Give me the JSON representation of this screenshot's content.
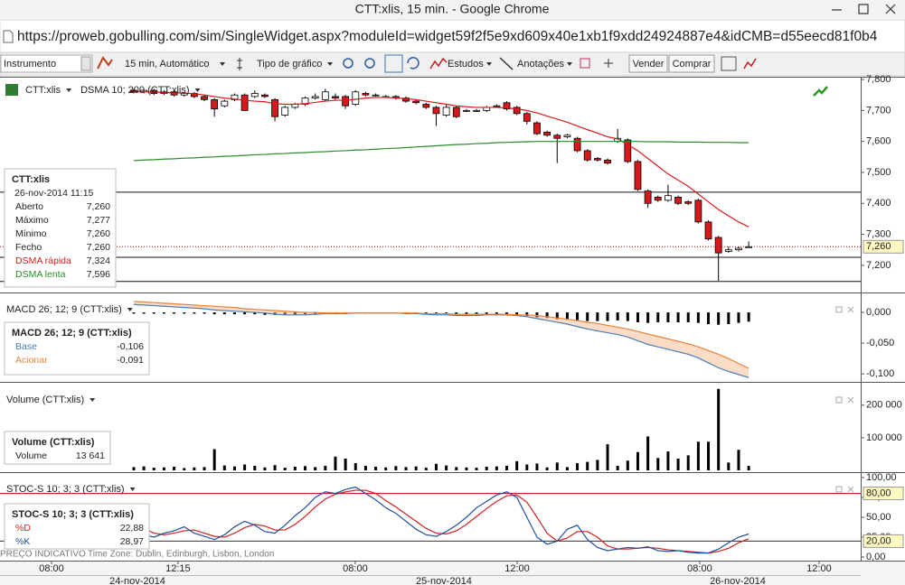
{
  "window": {
    "title": "CTT:xlis, 15 min. - Google Chrome"
  },
  "address_bar": {
    "url": "https://proweb.gobulling.com/sim/SingleWidget.aspx?moduleId=widget59f2f5e9xd609x40e1xb1f9xdd24924887e4&idCMB=d55eecd81f0b4"
  },
  "toolbar": {
    "instrument": "Instrumento",
    "interval": "15 min, Automático",
    "chart_type": "Tipo de gráfico",
    "studies": "Estudos",
    "annotations": "Anotações",
    "sell": "Vender",
    "buy": "Comprar"
  },
  "footer": {
    "note": "PREÇO INDICATIVO",
    "timezone": "Time Zone: Dublin, Edinburgh, Lisbon, London"
  },
  "chart_data": [
    {
      "type": "candlestick",
      "title": "CTT:xlis",
      "subtitle": "DSMA 10; 200 (CTT:xlis)",
      "x": [
        0,
        1,
        2,
        3,
        4,
        5,
        6,
        7,
        8,
        9,
        10,
        11,
        12,
        13,
        14,
        15,
        16,
        17,
        18,
        19,
        20,
        21,
        22,
        23,
        24,
        25,
        26,
        27,
        28,
        29,
        30,
        31,
        32,
        33,
        34,
        35,
        36,
        37,
        38,
        39,
        40,
        41,
        42,
        43,
        44,
        45,
        46,
        47,
        48,
        49,
        50,
        51,
        52,
        53,
        54,
        55,
        56,
        57,
        58,
        59,
        60,
        61
      ],
      "open": [
        7.765,
        7.76,
        7.765,
        7.755,
        7.76,
        7.75,
        7.755,
        7.745,
        7.735,
        7.715,
        7.735,
        7.75,
        7.745,
        7.75,
        7.735,
        7.685,
        7.71,
        7.72,
        7.74,
        7.735,
        7.745,
        7.745,
        7.72,
        7.755,
        7.75,
        7.745,
        7.745,
        7.74,
        7.73,
        7.72,
        7.71,
        7.685,
        7.71,
        7.7,
        7.7,
        7.7,
        7.715,
        7.725,
        7.71,
        7.69,
        7.66,
        7.63,
        7.62,
        7.615,
        7.61,
        7.57,
        7.545,
        7.54,
        7.6,
        7.605,
        7.535,
        7.44,
        7.42,
        7.41,
        7.42,
        7.405,
        7.41,
        7.34,
        7.29,
        7.245,
        7.25,
        7.26
      ],
      "high": [
        7.77,
        7.77,
        7.77,
        7.765,
        7.765,
        7.76,
        7.76,
        7.75,
        7.74,
        7.735,
        7.755,
        7.755,
        7.765,
        7.755,
        7.74,
        7.715,
        7.725,
        7.745,
        7.755,
        7.77,
        7.755,
        7.75,
        7.765,
        7.76,
        7.755,
        7.75,
        7.75,
        7.745,
        7.735,
        7.725,
        7.715,
        7.72,
        7.715,
        7.705,
        7.705,
        7.715,
        7.72,
        7.73,
        7.715,
        7.695,
        7.665,
        7.635,
        7.625,
        7.625,
        7.615,
        7.575,
        7.55,
        7.545,
        7.64,
        7.61,
        7.54,
        7.445,
        7.425,
        7.46,
        7.425,
        7.41,
        7.415,
        7.345,
        7.295,
        7.26,
        7.26,
        7.277
      ],
      "low": [
        7.755,
        7.755,
        7.75,
        7.75,
        7.745,
        7.745,
        7.74,
        7.73,
        7.68,
        7.71,
        7.73,
        7.7,
        7.74,
        7.74,
        7.665,
        7.68,
        7.705,
        7.715,
        7.735,
        7.73,
        7.735,
        7.705,
        7.715,
        7.745,
        7.745,
        7.74,
        7.735,
        7.725,
        7.72,
        7.705,
        7.65,
        7.68,
        7.675,
        7.695,
        7.695,
        7.695,
        7.71,
        7.7,
        7.685,
        7.655,
        7.62,
        7.615,
        7.53,
        7.61,
        7.565,
        7.535,
        7.535,
        7.525,
        7.595,
        7.53,
        7.44,
        7.385,
        7.405,
        7.405,
        7.395,
        7.395,
        7.335,
        7.28,
        7.15,
        7.24,
        7.245,
        7.26
      ],
      "close": [
        7.76,
        7.765,
        7.755,
        7.76,
        7.75,
        7.755,
        7.745,
        7.735,
        7.705,
        7.73,
        7.75,
        7.7,
        7.755,
        7.745,
        7.68,
        7.71,
        7.72,
        7.74,
        7.745,
        7.76,
        7.74,
        7.715,
        7.76,
        7.75,
        7.75,
        7.745,
        7.74,
        7.73,
        7.725,
        7.71,
        7.69,
        7.71,
        7.68,
        7.7,
        7.7,
        7.71,
        7.715,
        7.705,
        7.69,
        7.665,
        7.625,
        7.62,
        7.61,
        7.62,
        7.57,
        7.54,
        7.54,
        7.53,
        7.61,
        7.535,
        7.445,
        7.4,
        7.41,
        7.425,
        7.4,
        7.4,
        7.34,
        7.285,
        7.24,
        7.25,
        7.255,
        7.26
      ],
      "up_color": "#ffffff",
      "down_color": "#d7191c",
      "info": {
        "date": "26-nov-2014 11:15",
        "rows": [
          [
            "Aberto",
            "7,260"
          ],
          [
            "Máximo",
            "7,277"
          ],
          [
            "Mínimo",
            "7,260"
          ],
          [
            "Fecho",
            "7,260"
          ]
        ]
      },
      "series": [
        {
          "name": "DSMA rápida",
          "color": "#d7191c",
          "current": "7,324",
          "values": [
            7.76,
            7.76,
            7.76,
            7.758,
            7.757,
            7.756,
            7.754,
            7.75,
            7.745,
            7.74,
            7.737,
            7.733,
            7.73,
            7.728,
            7.722,
            7.72,
            7.72,
            7.722,
            7.726,
            7.73,
            7.733,
            7.733,
            7.736,
            7.74,
            7.742,
            7.742,
            7.74,
            7.738,
            7.735,
            7.73,
            7.725,
            7.72,
            7.715,
            7.712,
            7.71,
            7.71,
            7.71,
            7.708,
            7.705,
            7.7,
            7.692,
            7.682,
            7.672,
            7.662,
            7.65,
            7.638,
            7.627,
            7.615,
            7.608,
            7.59,
            7.57,
            7.545,
            7.52,
            7.495,
            7.475,
            7.455,
            7.43,
            7.405,
            7.38,
            7.36,
            7.34,
            7.324
          ]
        },
        {
          "name": "DSMA lenta",
          "color": "#2a8a2a",
          "current": "7,596",
          "values": [
            7.538,
            7.54,
            7.541,
            7.543,
            7.544,
            7.546,
            7.547,
            7.549,
            7.55,
            7.552,
            7.553,
            7.555,
            7.557,
            7.558,
            7.56,
            7.561,
            7.563,
            7.564,
            7.566,
            7.567,
            7.569,
            7.57,
            7.572,
            7.573,
            7.575,
            7.577,
            7.578,
            7.58,
            7.582,
            7.584,
            7.586,
            7.588,
            7.59,
            7.591,
            7.593,
            7.594,
            7.596,
            7.597,
            7.598,
            7.599,
            7.6,
            7.6,
            7.6,
            7.6,
            7.6,
            7.6,
            7.6,
            7.6,
            7.6,
            7.6,
            7.6,
            7.599,
            7.599,
            7.599,
            7.598,
            7.598,
            7.598,
            7.597,
            7.597,
            7.597,
            7.596,
            7.596
          ]
        }
      ],
      "hlines": [
        7.436,
        7.226,
        7.148
      ],
      "last": {
        "value": 7.26,
        "label": "7,260"
      },
      "xlim": [
        -13.27,
        72.11
      ],
      "ylim": [
        7.118,
        7.806
      ],
      "yticks": [
        {
          "value": 7.2,
          "label": "7,200"
        },
        {
          "value": 7.3,
          "label": "7,300"
        },
        {
          "value": 7.4,
          "label": "7,400"
        },
        {
          "value": 7.5,
          "label": "7,500"
        },
        {
          "value": 7.6,
          "label": "7,600"
        },
        {
          "value": 7.7,
          "label": "7,700"
        },
        {
          "value": 7.8,
          "label": "7,800"
        }
      ]
    },
    {
      "type": "line",
      "title": "MACD 26; 12; 9 (CTT:xlis)",
      "series": [
        {
          "name": "Base",
          "color": "#4a7ebb",
          "current": "-0,106",
          "values": [
            0.013,
            0.012,
            0.011,
            0.01,
            0.009,
            0.008,
            0.007,
            0.006,
            0.004,
            0.003,
            0.002,
            0.001,
            0,
            -0.001,
            -0.003,
            -0.004,
            -0.004,
            -0.004,
            -0.003,
            -0.002,
            -0.002,
            -0.002,
            -0.001,
            -0.001,
            -0.001,
            -0.001,
            -0.001,
            -0.002,
            -0.002,
            -0.003,
            -0.004,
            -0.004,
            -0.005,
            -0.005,
            -0.005,
            -0.004,
            -0.004,
            -0.004,
            -0.005,
            -0.007,
            -0.01,
            -0.013,
            -0.016,
            -0.019,
            -0.023,
            -0.027,
            -0.03,
            -0.033,
            -0.036,
            -0.04,
            -0.046,
            -0.052,
            -0.056,
            -0.06,
            -0.064,
            -0.068,
            -0.074,
            -0.082,
            -0.09,
            -0.096,
            -0.101,
            -0.106
          ]
        },
        {
          "name": "Acionar",
          "color": "#e8823c",
          "current": "-0,091",
          "values": [
            0.018,
            0.017,
            0.016,
            0.015,
            0.014,
            0.013,
            0.012,
            0.011,
            0.01,
            0.009,
            0.008,
            0.006,
            0.005,
            0.004,
            0.003,
            0.002,
            0.001,
            0,
            0,
            -0.001,
            -0.001,
            -0.001,
            -0.001,
            -0.001,
            -0.001,
            -0.001,
            -0.001,
            -0.001,
            -0.001,
            -0.002,
            -0.002,
            -0.002,
            -0.003,
            -0.003,
            -0.003,
            -0.003,
            -0.003,
            -0.003,
            -0.004,
            -0.004,
            -0.005,
            -0.007,
            -0.009,
            -0.011,
            -0.013,
            -0.016,
            -0.018,
            -0.021,
            -0.024,
            -0.027,
            -0.031,
            -0.035,
            -0.039,
            -0.043,
            -0.047,
            -0.051,
            -0.056,
            -0.062,
            -0.068,
            -0.075,
            -0.083,
            -0.091
          ]
        }
      ],
      "histogram": {
        "color": "#000000",
        "values": [
          -0.002,
          -0.002,
          -0.002,
          -0.002,
          -0.002,
          -0.002,
          -0.002,
          -0.002,
          -0.003,
          -0.003,
          -0.003,
          -0.003,
          -0.003,
          -0.004,
          -0.004,
          -0.004,
          -0.004,
          -0.003,
          -0.003,
          -0.002,
          -0.002,
          -0.002,
          -0.002,
          -0.002,
          -0.002,
          -0.002,
          -0.002,
          -0.002,
          -0.002,
          -0.002,
          -0.003,
          -0.003,
          -0.003,
          -0.003,
          -0.003,
          -0.003,
          -0.003,
          -0.003,
          -0.004,
          -0.006,
          -0.008,
          -0.009,
          -0.011,
          -0.012,
          -0.014,
          -0.014,
          -0.014,
          -0.014,
          -0.013,
          -0.014,
          -0.016,
          -0.017,
          -0.016,
          -0.016,
          -0.016,
          -0.016,
          -0.017,
          -0.019,
          -0.02,
          -0.019,
          -0.017,
          -0.015
        ]
      },
      "xlim": [
        -13.27,
        72.11
      ],
      "ylim": [
        -0.11,
        0.028
      ],
      "yticks": [
        {
          "value": 0,
          "label": "0,000"
        },
        {
          "value": -0.05,
          "label": "-0,050"
        },
        {
          "value": -0.1,
          "label": "-0,100"
        }
      ]
    },
    {
      "type": "bar",
      "title": "Volume (CTT:xlis)",
      "series": [
        {
          "name": "Volume",
          "color": "#000000",
          "current": "13 641",
          "values": [
            10000,
            12000,
            8000,
            9000,
            11000,
            7000,
            9000,
            10000,
            65000,
            15000,
            12000,
            18000,
            14000,
            9000,
            16000,
            8000,
            11000,
            13000,
            10000,
            14000,
            42000,
            36000,
            22000,
            14000,
            11000,
            9000,
            13000,
            10000,
            12000,
            8000,
            20000,
            15000,
            10000,
            9000,
            8000,
            11000,
            12000,
            14000,
            28000,
            18000,
            21000,
            9000,
            24000,
            10000,
            22000,
            26000,
            32000,
            80000,
            14000,
            30000,
            56000,
            104000,
            38000,
            58000,
            36000,
            46000,
            88000,
            88000,
            250000,
            24000,
            63000,
            13641
          ]
        }
      ],
      "xlim": [
        -13.27,
        72.11
      ],
      "ylim": [
        0,
        266000
      ],
      "yticks": [
        {
          "value": 200000,
          "label": "200 000"
        },
        {
          "value": 100000,
          "label": "100 000"
        }
      ]
    },
    {
      "type": "line",
      "title": "STOC-S 10; 3; 3 (CTT:xlis)",
      "series": [
        {
          "name": "%D",
          "color": "#d02020",
          "current": "22,88",
          "values": [
            45,
            36,
            30,
            28,
            30,
            33,
            34,
            30,
            26,
            25,
            30,
            37,
            41,
            39,
            34,
            34,
            41,
            51,
            63,
            73,
            79,
            82,
            84,
            84,
            80,
            71,
            63,
            54,
            45,
            36,
            30,
            29,
            33,
            41,
            51,
            61,
            70,
            77,
            78,
            69,
            50,
            30,
            20,
            24,
            32,
            32,
            25,
            14,
            10,
            10,
            11,
            12,
            11,
            9,
            8,
            7,
            6,
            5,
            7,
            11,
            18,
            22.88
          ]
        },
        {
          "name": "%K",
          "color": "#1f4e9c",
          "current": "28,97",
          "values": [
            35,
            28,
            25,
            30,
            33,
            38,
            30,
            26,
            22,
            28,
            38,
            45,
            40,
            32,
            30,
            40,
            52,
            62,
            75,
            82,
            80,
            85,
            88,
            80,
            72,
            62,
            55,
            45,
            35,
            28,
            26,
            32,
            40,
            50,
            62,
            70,
            78,
            82,
            75,
            50,
            25,
            16,
            20,
            35,
            40,
            22,
            12,
            8,
            10,
            12,
            11,
            13,
            8,
            7,
            8,
            6,
            5,
            5,
            10,
            18,
            25,
            28.97
          ]
        }
      ],
      "levels": [
        {
          "value": 80,
          "label": "80,00",
          "color": "#c00000"
        },
        {
          "value": 20,
          "label": "20,00",
          "color": "#333333"
        }
      ],
      "xlim": [
        -13.27,
        72.11
      ],
      "ylim": [
        -3.4,
        104.5
      ],
      "yticks": [
        {
          "value": 100,
          "label": "100,00"
        },
        {
          "value": 75,
          "label": "75,00"
        },
        {
          "value": 50,
          "label": "50,00"
        },
        {
          "value": 25,
          "label": "25,00"
        },
        {
          "value": 0,
          "label": "0,00"
        }
      ],
      "xticks": [
        {
          "value": -8.16,
          "label": "08:00"
        },
        {
          "value": 4.39,
          "label": "12:15"
        },
        {
          "value": 21.97,
          "label": "08:00"
        },
        {
          "value": 38.03,
          "label": "12:00"
        },
        {
          "value": 56.14,
          "label": "08:00"
        },
        {
          "value": 67.98,
          "label": "12:00"
        }
      ],
      "date_labels": [
        {
          "value": 0.36,
          "label": "24-nov-2014"
        },
        {
          "value": 30.76,
          "label": "25-nov-2014"
        },
        {
          "value": 59.91,
          "label": "26-nov-2014"
        }
      ]
    }
  ]
}
